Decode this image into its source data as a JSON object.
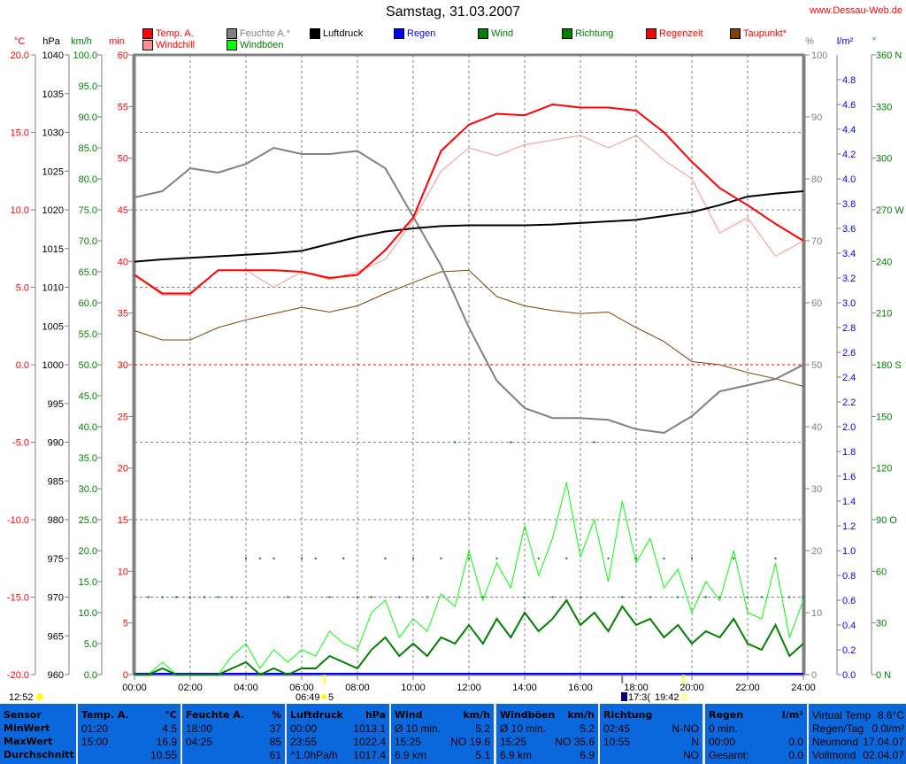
{
  "title": "Samstag, 31.03.2007",
  "site": "www.Dessau-Web.de",
  "units": {
    "temp": "°C",
    "hpa": "hPa",
    "kmh": "km/h",
    "min": "min",
    "pct": "%",
    "rain": "l/m²",
    "deg": "°"
  },
  "legend": [
    {
      "label": "Temp. A.",
      "color": "#ff0000"
    },
    {
      "label": "Windchill",
      "color": "#ff9090"
    },
    {
      "label": "Feuchte A.*",
      "color": "#808080"
    },
    {
      "label": "Windböen",
      "color": "#00ff00"
    },
    {
      "label": "Luftdruck",
      "color": "#000000"
    },
    {
      "label": "Regen",
      "color": "#0000ff"
    },
    {
      "label": "Wind",
      "color": "#008000"
    },
    {
      "label": "Richtung",
      "color": "#008000"
    },
    {
      "label": "Regenzeit",
      "color": "#ff0000"
    },
    {
      "label": "Taupunkt*",
      "color": "#804000"
    }
  ],
  "chart_data": {
    "type": "line",
    "title": "Samstag, 31.03.2007",
    "x_ticks": [
      "00:00",
      "02:00",
      "04:00",
      "06:00",
      "08:00",
      "10:00",
      "12:00",
      "14:00",
      "16:00",
      "18:00",
      "20:00",
      "22:00",
      "24:00"
    ],
    "axes": {
      "temp": {
        "range": [
          -20,
          20
        ],
        "ticks": [
          "20.0",
          "15.0",
          "10.0",
          "5.0",
          "0.0",
          "-5.0",
          "-10.0",
          "-15.0",
          "-20.0"
        ]
      },
      "hpa": {
        "range": [
          960,
          1040
        ],
        "ticks": [
          "1040",
          "1035",
          "1030",
          "1025",
          "1020",
          "1015",
          "1010",
          "1005",
          "1000",
          "995",
          "990",
          "985",
          "980",
          "975",
          "970",
          "965",
          "960"
        ]
      },
      "kmh": {
        "range": [
          0,
          100
        ],
        "ticks": [
          "100.0",
          "95.0",
          "90.0",
          "85.0",
          "80.0",
          "75.0",
          "70.0",
          "65.0",
          "60.0",
          "55.0",
          "50.0",
          "45.0",
          "40.0",
          "35.0",
          "30.0",
          "25.0",
          "20.0",
          "15.0",
          "10.0",
          "5.0",
          "0.0"
        ]
      },
      "min": {
        "range": [
          0,
          60
        ],
        "ticks": [
          "60",
          "55",
          "50",
          "45",
          "40",
          "35",
          "30",
          "25",
          "20",
          "15",
          "10",
          "5",
          "0"
        ]
      },
      "pct": {
        "range": [
          0,
          100
        ],
        "ticks": [
          "100",
          "90",
          "80",
          "70",
          "60",
          "50",
          "40",
          "30",
          "20",
          "10",
          "0"
        ]
      },
      "rain": {
        "range": [
          0,
          5
        ],
        "ticks": [
          "4.8",
          "4.6",
          "4.4",
          "4.2",
          "4.0",
          "3.8",
          "3.6",
          "3.4",
          "3.2",
          "3.0",
          "2.8",
          "2.6",
          "2.4",
          "2.2",
          "2.0",
          "1.8",
          "1.6",
          "1.4",
          "1.2",
          "1.0",
          "0.8",
          "0.6",
          "0.4",
          "0.2",
          "0.0"
        ]
      },
      "deg": {
        "range": [
          0,
          360
        ],
        "ticks": [
          "360 N",
          "330",
          "300",
          "270 W",
          "240",
          "210",
          "180 S",
          "150",
          "120",
          "90 O",
          "60",
          "30",
          "0 N"
        ]
      }
    },
    "hours_hourly": [
      0,
      1,
      2,
      3,
      4,
      5,
      6,
      7,
      8,
      9,
      10,
      11,
      12,
      13,
      14,
      15,
      16,
      17,
      18,
      19,
      20,
      21,
      22,
      23,
      24
    ],
    "series": [
      {
        "name": "Temp. A.",
        "axis": "temp",
        "color": "#ff0000",
        "values": [
          5.8,
          4.6,
          4.6,
          6.1,
          6.1,
          6.1,
          6.0,
          5.6,
          5.8,
          7.4,
          9.5,
          13.8,
          15.5,
          16.2,
          16.1,
          16.8,
          16.6,
          16.6,
          16.4,
          15.0,
          13.1,
          11.4,
          10.3,
          9.1,
          8.0
        ]
      },
      {
        "name": "Windchill",
        "axis": "temp",
        "color": "#ff9090",
        "values": [
          5.8,
          4.5,
          4.5,
          6.1,
          6.1,
          5.0,
          6.0,
          5.5,
          6.0,
          6.8,
          9.3,
          12.5,
          14.0,
          13.5,
          14.2,
          14.5,
          14.8,
          14.0,
          14.8,
          13.2,
          12.0,
          8.5,
          9.5,
          7.0,
          8.0
        ]
      },
      {
        "name": "Feuchte A.*",
        "axis": "pct",
        "color": "#808080",
        "values": [
          77,
          78,
          81.7,
          81,
          82.4,
          85,
          84,
          84,
          84.5,
          81.7,
          73.9,
          66,
          56,
          47.4,
          43,
          41.4,
          41.4,
          41.1,
          39.6,
          39,
          41.7,
          45.7,
          46.7,
          47.7,
          50
        ]
      },
      {
        "name": "Luftdruck",
        "axis": "hpa",
        "color": "#000000",
        "values": [
          1013.3,
          1013.6,
          1013.8,
          1014,
          1014.2,
          1014.4,
          1014.7,
          1015.6,
          1016.5,
          1017.2,
          1017.6,
          1017.9,
          1018,
          1018,
          1018,
          1018.1,
          1018.3,
          1018.5,
          1018.7,
          1019.2,
          1019.7,
          1020.6,
          1021.7,
          1022.1,
          1022.4
        ]
      },
      {
        "name": "Taupunkt*",
        "axis": "temp",
        "color": "#804000",
        "values": [
          2.2,
          1.6,
          1.6,
          2.4,
          2.9,
          3.3,
          3.7,
          3.4,
          3.8,
          4.6,
          5.3,
          6.0,
          6.1,
          4.4,
          3.8,
          3.5,
          3.3,
          3.4,
          2.4,
          1.5,
          0.2,
          0,
          -0.5,
          -0.9,
          -1.4
        ]
      }
    ],
    "half_hourly_series": [
      {
        "name": "Wind",
        "axis": "kmh",
        "color": "#008000",
        "values": [
          0,
          0,
          1,
          0,
          0,
          0,
          0,
          1,
          2,
          0,
          1,
          0,
          1,
          1,
          3,
          2,
          1,
          4,
          6,
          3,
          5,
          3,
          6,
          5,
          8,
          5,
          9,
          6,
          10,
          7,
          9,
          12,
          8,
          10,
          7,
          11,
          8,
          9,
          6,
          8,
          5,
          7,
          6,
          9,
          5,
          4,
          8,
          3,
          5
        ]
      },
      {
        "name": "Windböen",
        "axis": "kmh",
        "color": "#00ff00",
        "values": [
          0,
          0,
          2,
          0,
          0,
          0,
          0,
          3,
          5,
          1,
          4,
          2,
          4,
          3,
          7,
          5,
          4,
          10,
          12,
          6,
          9,
          7,
          13,
          11,
          20,
          12,
          18,
          14,
          24,
          16,
          22,
          31,
          19,
          25,
          15,
          28,
          18,
          22,
          14,
          17,
          10,
          15,
          12,
          20,
          10,
          9,
          18,
          6,
          12
        ]
      },
      {
        "name": "Richtung",
        "axis": "deg",
        "color": "#008000",
        "style": "dots",
        "values": [
          45,
          45,
          45,
          45,
          45,
          45,
          45,
          45,
          67.5,
          67.5,
          67.5,
          45,
          67.5,
          67.5,
          45,
          67.5,
          45,
          45,
          67.5,
          45,
          67.5,
          45,
          67.5,
          135,
          67.5,
          45,
          67.5,
          135,
          45,
          67.5,
          45,
          67.5,
          45,
          135,
          67.5,
          45,
          67.5,
          45,
          67.5,
          45,
          67.5,
          45,
          45,
          67.5,
          45,
          45,
          67.5,
          45,
          45
        ]
      },
      {
        "name": "Regen",
        "axis": "rain",
        "color": "#0000ff",
        "values": [
          0,
          0,
          0,
          0,
          0,
          0,
          0,
          0,
          0,
          0,
          0,
          0,
          0,
          0,
          0,
          0,
          0,
          0,
          0,
          0,
          0,
          0,
          0,
          0,
          0,
          0,
          0,
          0,
          0,
          0,
          0,
          0,
          0,
          0,
          0,
          0,
          0,
          0,
          0,
          0,
          0,
          0,
          0,
          0,
          0,
          0,
          0,
          0,
          0
        ]
      }
    ]
  },
  "sun": {
    "moonrise": "12:52",
    "sunrise": "06:49",
    "sunrise_suffix": "5",
    "moonset": "17:3(",
    "sunset": "19:42"
  },
  "table": {
    "sensor": {
      "header": "Sensor",
      "rows": [
        "MinWert",
        "MaxWert",
        "Durchschnitt"
      ]
    },
    "temp": {
      "header": "Temp. A.",
      "unit": "°C",
      "rows": [
        [
          "01:20",
          "4.5"
        ],
        [
          "15:00",
          "16.9"
        ],
        [
          "",
          "10.55"
        ]
      ]
    },
    "hum": {
      "header": "Feuchte A.",
      "unit": "%",
      "rows": [
        [
          "18:00",
          "37"
        ],
        [
          "04:25",
          "85"
        ],
        [
          "",
          "61"
        ]
      ]
    },
    "press": {
      "header": "Luftdruck",
      "unit": "hPa",
      "rows": [
        [
          "00:00",
          "1013.1"
        ],
        [
          "23:55",
          "1022.4"
        ],
        [
          "^1.0hPa/h",
          "1017.4"
        ]
      ]
    },
    "wind": {
      "header": "Wind",
      "unit": "km/h",
      "rows": [
        [
          "Ø 10 min.",
          "5.2"
        ],
        [
          "15:25",
          "NO 19.6"
        ],
        [
          "6.9 km",
          "5.1"
        ]
      ]
    },
    "gust": {
      "header": "Windböen",
      "unit": "km/h",
      "rows": [
        [
          "Ø 10 min.",
          "5.2"
        ],
        [
          "15:25",
          "NO 35.6"
        ],
        [
          "6.9 km",
          "6.9"
        ]
      ]
    },
    "dir": {
      "header": "Richtung",
      "unit": "",
      "rows": [
        [
          "02:45",
          "N-NO"
        ],
        [
          "10:55",
          "N"
        ],
        [
          "",
          "NO"
        ]
      ]
    },
    "rain": {
      "header": "Regen",
      "unit": "l/m²",
      "rows": [
        [
          "0 min.",
          ""
        ],
        [
          "00:00",
          "0.0"
        ],
        [
          "Gesamt:",
          "0.0"
        ]
      ]
    },
    "extra": {
      "rows": [
        [
          "Virtual Temp",
          "8.6°C"
        ],
        [
          "Regen/Tag",
          "0.0l/m²"
        ],
        [
          "Neumond",
          "17.04.07"
        ],
        [
          "Vollmond",
          "02.04.07"
        ]
      ]
    }
  }
}
